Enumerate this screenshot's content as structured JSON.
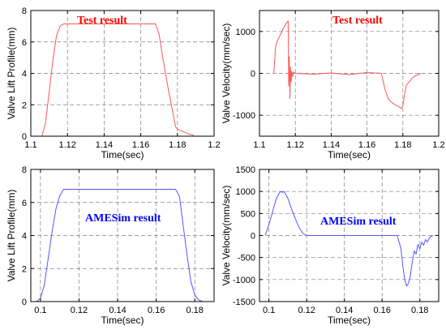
{
  "chart_data": [
    {
      "type": "line",
      "annotation": "Test result",
      "annotation_color": "#ff0000",
      "line_color": "#ff5555",
      "xlabel": "Time(sec)",
      "ylabel": "Valve Lift Profile(mm)",
      "xlim": [
        1.1,
        1.2
      ],
      "ylim": [
        0,
        8
      ],
      "xticks": [
        1.1,
        1.12,
        1.14,
        1.16,
        1.18,
        1.2
      ],
      "xtick_labels": [
        "1.1",
        "1.12",
        "1.14",
        "1.16",
        "1.18",
        "1.2"
      ],
      "yticks": [
        0,
        2,
        4,
        6,
        8
      ],
      "ytick_labels": [
        "0",
        "2",
        "4",
        "6",
        "8"
      ],
      "grid": true,
      "series": [
        {
          "x": [
            1.1,
            1.106,
            1.108,
            1.11,
            1.112,
            1.114,
            1.116,
            1.117,
            1.118,
            1.13,
            1.15,
            1.168,
            1.17,
            1.172,
            1.175,
            1.178,
            1.179,
            1.18,
            1.183,
            1.186,
            1.189
          ],
          "y": [
            0,
            0,
            0.8,
            2.8,
            4.8,
            6.4,
            7.0,
            7.1,
            7.15,
            7.15,
            7.15,
            7.15,
            6.5,
            5.0,
            3.0,
            1.2,
            0.6,
            0.45,
            0.3,
            0.15,
            0.05
          ]
        }
      ]
    },
    {
      "type": "line",
      "annotation": "Test result",
      "annotation_color": "#ff0000",
      "line_color": "#ff5555",
      "xlabel": "Time(sec)",
      "ylabel": "Valve Velocity(mm/sec)",
      "xlim": [
        1.1,
        1.2
      ],
      "ylim": [
        -1500,
        1500
      ],
      "xticks": [
        1.1,
        1.12,
        1.14,
        1.16,
        1.18,
        1.2
      ],
      "xtick_labels": [
        "1.1",
        "1.12",
        "1.14",
        "1.16",
        "1.18",
        "1.2"
      ],
      "yticks": [
        -1000,
        0,
        1000
      ],
      "ytick_labels": [
        "-1000",
        "0",
        "1000"
      ],
      "grid": true,
      "series": [
        {
          "x": [
            1.108,
            1.109,
            1.11,
            1.111,
            1.112,
            1.113,
            1.114,
            1.115,
            1.116,
            1.1163,
            1.1166,
            1.117,
            1.1173,
            1.1177,
            1.118,
            1.1185,
            1.119,
            1.12,
            1.13,
            1.14,
            1.15,
            1.16,
            1.168,
            1.17,
            1.172,
            1.174,
            1.176,
            1.178,
            1.179,
            1.18,
            1.181,
            1.182,
            1.184,
            1.186,
            1.188,
            1.19
          ],
          "y": [
            0,
            650,
            780,
            870,
            950,
            1050,
            1120,
            1200,
            1250,
            -300,
            400,
            -600,
            150,
            -200,
            50,
            -80,
            30,
            0,
            -20,
            10,
            -30,
            20,
            0,
            -380,
            -620,
            -700,
            -760,
            -800,
            -840,
            -780,
            -500,
            -280,
            -180,
            -80,
            -40,
            0
          ]
        }
      ]
    },
    {
      "type": "line",
      "annotation": "AMESim result",
      "annotation_color": "#0000ff",
      "line_color": "#5555ff",
      "xlabel": "Time(sec)",
      "ylabel": "Valve Lift Profile(mm)",
      "xlim": [
        0.095,
        0.19
      ],
      "ylim": [
        0,
        8
      ],
      "xticks": [
        0.1,
        0.12,
        0.14,
        0.16,
        0.18
      ],
      "xtick_labels": [
        "0.1",
        "0.12",
        "0.14",
        "0.16",
        "0.18"
      ],
      "yticks": [
        0,
        2,
        4,
        6,
        8
      ],
      "ytick_labels": [
        "0",
        "2",
        "4",
        "6",
        "8"
      ],
      "grid": true,
      "series": [
        {
          "x": [
            0.098,
            0.1,
            0.102,
            0.104,
            0.106,
            0.108,
            0.11,
            0.112,
            0.115,
            0.13,
            0.15,
            0.17,
            0.172,
            0.174,
            0.176,
            0.178,
            0.18,
            0.182,
            0.184
          ],
          "y": [
            0,
            0.2,
            1.0,
            2.6,
            4.2,
            5.6,
            6.4,
            6.8,
            6.8,
            6.8,
            6.8,
            6.8,
            6.4,
            4.6,
            2.8,
            1.2,
            0.4,
            0.1,
            0
          ]
        }
      ]
    },
    {
      "type": "line",
      "annotation": "AMESim result",
      "annotation_color": "#0000ff",
      "line_color": "#5555ff",
      "xlabel": "Time(sec)",
      "ylabel": "Valve Velocity(mm/sec)",
      "xlim": [
        0.095,
        0.19
      ],
      "ylim": [
        -1500,
        1500
      ],
      "xticks": [
        0.1,
        0.12,
        0.14,
        0.16,
        0.18
      ],
      "xtick_labels": [
        "0.1",
        "0.12",
        "0.14",
        "0.16",
        "0.18"
      ],
      "yticks": [
        -1500,
        -1000,
        -500,
        0,
        500,
        1000,
        1500
      ],
      "ytick_labels": [
        "-1500",
        "-1000",
        "-500",
        "0",
        "500",
        "1000",
        "1500"
      ],
      "grid": true,
      "series": [
        {
          "x": [
            0.098,
            0.1,
            0.102,
            0.104,
            0.106,
            0.107,
            0.108,
            0.11,
            0.112,
            0.114,
            0.116,
            0.118,
            0.12,
            0.13,
            0.16,
            0.168,
            0.17,
            0.171,
            0.172,
            0.173,
            0.174,
            0.175,
            0.176,
            0.177,
            0.178,
            0.179,
            0.18,
            0.181,
            0.182,
            0.183,
            0.184,
            0.185,
            0.186,
            0.187
          ],
          "y": [
            0,
            250,
            550,
            850,
            1000,
            980,
            1000,
            850,
            600,
            380,
            180,
            50,
            0,
            0,
            0,
            0,
            -300,
            -700,
            -1000,
            -1150,
            -1080,
            -900,
            -600,
            -350,
            -420,
            -200,
            -300,
            -150,
            -220,
            -90,
            -150,
            -60,
            -20,
            0
          ]
        }
      ]
    }
  ]
}
